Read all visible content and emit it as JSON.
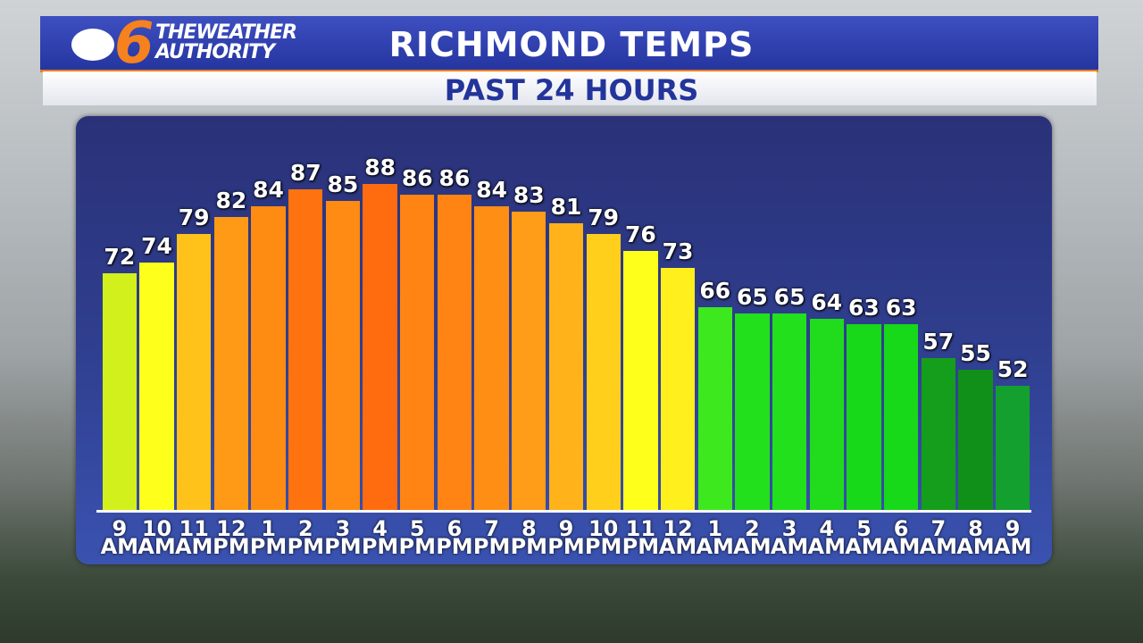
{
  "header": {
    "logo_number": "6",
    "brand_lines": [
      "THEWEATHER",
      "AUTHORITY"
    ]
  },
  "chart_data": {
    "type": "bar",
    "title": "RICHMOND TEMPS",
    "subtitle": "PAST 24 HOURS",
    "categories": [
      "9\nAM",
      "10\nAM",
      "11\nAM",
      "12\nPM",
      "1\nPM",
      "2\nPM",
      "3\nPM",
      "4\nPM",
      "5\nPM",
      "6\nPM",
      "7\nPM",
      "8\nPM",
      "9\nPM",
      "10\nPM",
      "11\nPM",
      "12\nAM",
      "1\nAM",
      "2\nAM",
      "3\nAM",
      "4\nAM",
      "5\nAM",
      "6\nAM",
      "7\nAM",
      "8\nAM",
      "9\nAM"
    ],
    "values": [
      72,
      74,
      79,
      82,
      84,
      87,
      85,
      88,
      86,
      86,
      84,
      83,
      81,
      79,
      76,
      73,
      66,
      65,
      65,
      64,
      63,
      63,
      57,
      55,
      52
    ],
    "colors": [
      "#d2f01c",
      "#ffff1c",
      "#ffc21a",
      "#ff9a16",
      "#ff8c12",
      "#ff7210",
      "#ff8a14",
      "#ff6c10",
      "#ff8414",
      "#ff8414",
      "#ff8e14",
      "#ff9c18",
      "#ffb21a",
      "#ffcf1c",
      "#ffff1c",
      "#ffef1c",
      "#3ee81e",
      "#22e01c",
      "#22e01c",
      "#20dc1c",
      "#18d81a",
      "#18d81a",
      "#159e1c",
      "#109018",
      "#14a02e"
    ],
    "ylim": [
      30,
      100
    ]
  }
}
